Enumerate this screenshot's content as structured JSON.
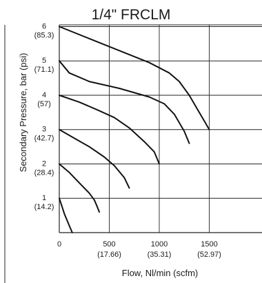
{
  "chart_data": {
    "type": "line",
    "title": "1/4\" FRCLM",
    "xlabel": "Flow, Nl/min (scfm)",
    "ylabel": "Secondary Pressure, bar (psi)",
    "xlim": [
      0,
      2000
    ],
    "ylim": [
      0,
      6
    ],
    "grid": true,
    "x_ticks": [
      {
        "value": 0,
        "label": "0",
        "sublabel": ""
      },
      {
        "value": 500,
        "label": "500",
        "sublabel": "(17.66)"
      },
      {
        "value": 1000,
        "label": "1000",
        "sublabel": "(35.31)"
      },
      {
        "value": 1500,
        "label": "1500",
        "sublabel": "(52.97)"
      }
    ],
    "y_ticks": [
      {
        "value": 1,
        "label": "1",
        "sublabel": "(14.2)"
      },
      {
        "value": 2,
        "label": "2",
        "sublabel": "(28.4)"
      },
      {
        "value": 3,
        "label": "3",
        "sublabel": "(42.7)"
      },
      {
        "value": 4,
        "label": "4",
        "sublabel": "(57)"
      },
      {
        "value": 5,
        "label": "5",
        "sublabel": "(71.1)"
      },
      {
        "value": 6,
        "label": "6",
        "sublabel": "(85.3)"
      }
    ],
    "series": [
      {
        "x": [
          0,
          50,
          100,
          130
        ],
        "y": [
          1.0,
          0.55,
          0.2,
          0.0
        ]
      },
      {
        "x": [
          0,
          100,
          200,
          300,
          350,
          380,
          400
        ],
        "y": [
          2.0,
          1.75,
          1.45,
          1.15,
          0.95,
          0.75,
          0.6
        ]
      },
      {
        "x": [
          0,
          150,
          300,
          450,
          550,
          650,
          700
        ],
        "y": [
          3.0,
          2.75,
          2.5,
          2.2,
          1.95,
          1.6,
          1.3
        ]
      },
      {
        "x": [
          0,
          200,
          400,
          550,
          700,
          850,
          950,
          1000
        ],
        "y": [
          4.0,
          3.8,
          3.55,
          3.35,
          3.05,
          2.65,
          2.35,
          2.0
        ]
      },
      {
        "x": [
          0,
          100,
          300,
          600,
          900,
          1050,
          1150,
          1250,
          1300
        ],
        "y": [
          5.0,
          4.65,
          4.4,
          4.2,
          3.95,
          3.75,
          3.45,
          2.95,
          2.6
        ]
      },
      {
        "x": [
          0,
          300,
          600,
          900,
          1100,
          1200,
          1300,
          1400,
          1450,
          1500
        ],
        "y": [
          6.0,
          5.65,
          5.3,
          4.95,
          4.65,
          4.4,
          4.0,
          3.5,
          3.25,
          3.0
        ]
      }
    ]
  }
}
